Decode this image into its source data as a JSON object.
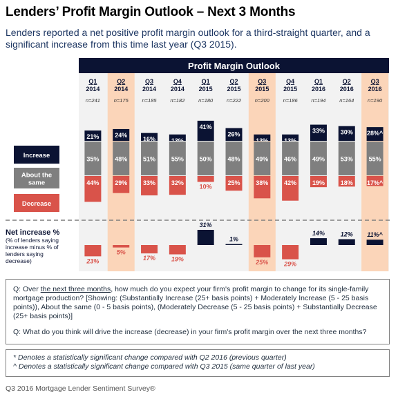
{
  "title": "Lenders’ Profit Margin Outlook – Next 3 Months",
  "subtitle": "Lenders reported a net positive profit margin outlook for a third-straight quarter, and a significant increase from this time last year (Q3 2015).",
  "colors": {
    "increase": "#0b1333",
    "same": "#7f7f7f",
    "decrease": "#d9534a",
    "highlight": "#fbd5b9",
    "header": "#0b1333"
  },
  "chart_data": {
    "type": "bar",
    "title": "Profit Margin Outlook",
    "categories": [
      {
        "quarter": "Q1",
        "year": "2014",
        "n": "n=241",
        "highlight": false
      },
      {
        "quarter": "Q2",
        "year": "2014",
        "n": "n=175",
        "highlight": true
      },
      {
        "quarter": "Q3",
        "year": "2014",
        "n": "n=185",
        "highlight": false
      },
      {
        "quarter": "Q4",
        "year": "2014",
        "n": "n=182",
        "highlight": false
      },
      {
        "quarter": "Q1",
        "year": "2015",
        "n": "n=180",
        "highlight": false
      },
      {
        "quarter": "Q2",
        "year": "2015",
        "n": "n=222",
        "highlight": false
      },
      {
        "quarter": "Q3",
        "year": "2015",
        "n": "n=200",
        "highlight": true
      },
      {
        "quarter": "Q4",
        "year": "2015",
        "n": "n=186",
        "highlight": false
      },
      {
        "quarter": "Q1",
        "year": "2016",
        "n": "n=194",
        "highlight": false
      },
      {
        "quarter": "Q2",
        "year": "2016",
        "n": "n=164",
        "highlight": false
      },
      {
        "quarter": "Q3",
        "year": "2016",
        "n": "n=190",
        "highlight": true
      }
    ],
    "series": [
      {
        "name": "Increase",
        "values": [
          21,
          24,
          16,
          13,
          41,
          26,
          13,
          13,
          33,
          30,
          28
        ],
        "labels": [
          "21%",
          "24%",
          "16%",
          "13%",
          "41%",
          "26%",
          "13%",
          "13%",
          "33%",
          "30%",
          "28%^"
        ]
      },
      {
        "name": "About the same",
        "values": [
          35,
          48,
          51,
          55,
          50,
          48,
          49,
          46,
          49,
          53,
          55
        ],
        "labels": [
          "35%",
          "48%",
          "51%",
          "55%",
          "50%",
          "48%",
          "49%",
          "46%",
          "49%",
          "53%",
          "55%"
        ]
      },
      {
        "name": "Decrease",
        "values": [
          44,
          29,
          33,
          32,
          10,
          25,
          38,
          42,
          19,
          18,
          17
        ],
        "labels": [
          "44%",
          "29%",
          "33%",
          "32%",
          "10%",
          "25%",
          "38%",
          "42%",
          "19%",
          "18%",
          "17%^"
        ]
      }
    ],
    "net": {
      "name": "Net increase %",
      "note": "(% of lenders saying increase minus % of lenders saying decrease)",
      "values": [
        -23,
        -5,
        -17,
        -19,
        31,
        1,
        -25,
        -29,
        14,
        12,
        11
      ],
      "labels": [
        "23%",
        "5%",
        "17%",
        "19%",
        "31%",
        "1%",
        "25%",
        "29%",
        "14%",
        "12%",
        "11%^"
      ]
    }
  },
  "question_box": {
    "q1_prefix": "Q: Over ",
    "q1_underlined": "the next three months",
    "q1_rest": ", how much do you expect your firm's profit margin to change for its single-family mortgage production? [Showing: (Substantially Increase (25+ basis points) + Moderately Increase (5 - 25 basis points)), About the same (0 - 5 basis points), (Moderately Decrease (5 - 25 basis points) + Substantially Decrease (25+ basis points)]",
    "q2": "Q: What do you think will drive the increase (decrease) in your firm's profit margin over the next three months?"
  },
  "notes": {
    "star": "* Denotes a statistically significant change compared with Q2 2016 (previous quarter)",
    "caret": "^ Denotes a statistically significant change compared with Q3 2015 (same quarter of last year)"
  },
  "footer": "Q3 2016 Mortgage Lender Sentiment Survey®"
}
